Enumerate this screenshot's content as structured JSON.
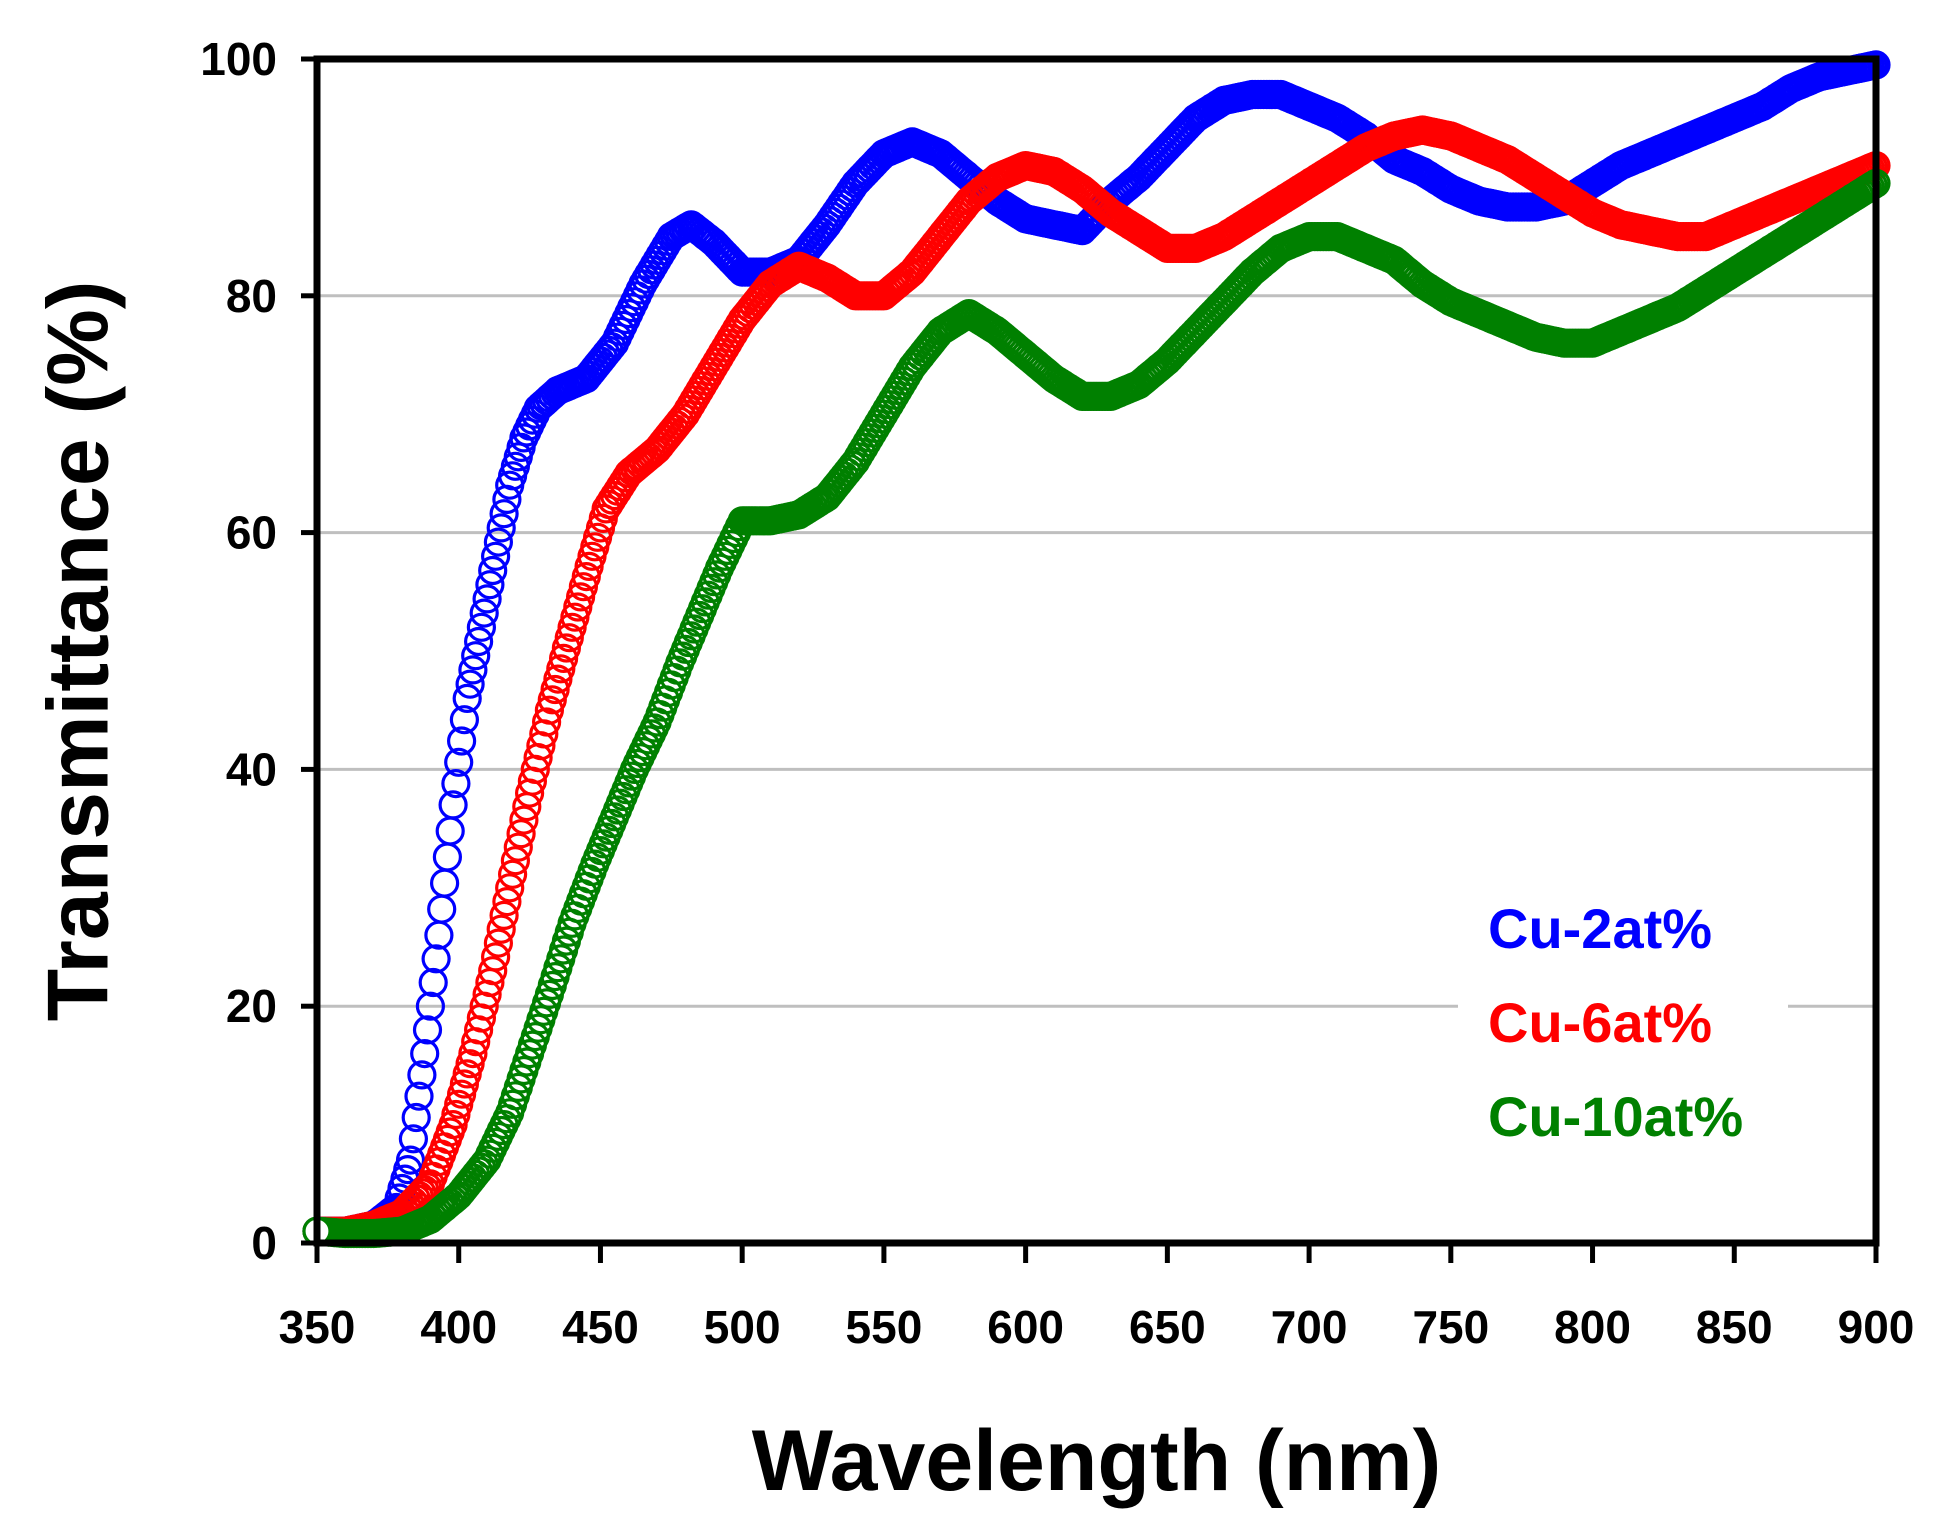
{
  "chart_data": {
    "type": "scatter",
    "title": "",
    "xlabel": "Wavelength (nm)",
    "ylabel": "Transmittance (%)",
    "xlim": [
      350,
      900
    ],
    "ylim": [
      0,
      100
    ],
    "x_ticks": [
      350,
      400,
      450,
      500,
      550,
      600,
      650,
      700,
      750,
      800,
      850,
      900
    ],
    "y_ticks": [
      0,
      20,
      40,
      60,
      80,
      100
    ],
    "grid": "horizontal",
    "marker": "open-circle",
    "legend_position": "lower-right",
    "series": [
      {
        "name": "Cu-2at%",
        "color": "#0000ff",
        "points": [
          [
            350,
            1
          ],
          [
            360,
            1
          ],
          [
            370,
            1.5
          ],
          [
            378,
            3
          ],
          [
            383,
            7
          ],
          [
            388,
            16
          ],
          [
            393,
            26
          ],
          [
            398,
            37
          ],
          [
            403,
            46
          ],
          [
            408,
            52
          ],
          [
            413,
            58
          ],
          [
            418,
            64
          ],
          [
            423,
            68
          ],
          [
            428,
            70.5
          ],
          [
            435,
            72
          ],
          [
            445,
            73
          ],
          [
            455,
            76
          ],
          [
            465,
            81
          ],
          [
            475,
            85
          ],
          [
            482,
            86
          ],
          [
            490,
            84.5
          ],
          [
            500,
            82
          ],
          [
            510,
            82
          ],
          [
            520,
            83
          ],
          [
            530,
            86
          ],
          [
            540,
            89.5
          ],
          [
            550,
            92
          ],
          [
            560,
            93
          ],
          [
            570,
            92
          ],
          [
            580,
            90
          ],
          [
            590,
            88
          ],
          [
            600,
            86.5
          ],
          [
            610,
            86
          ],
          [
            620,
            85.5
          ],
          [
            630,
            88
          ],
          [
            640,
            90
          ],
          [
            650,
            92.5
          ],
          [
            660,
            95
          ],
          [
            670,
            96.5
          ],
          [
            680,
            97
          ],
          [
            690,
            97
          ],
          [
            700,
            96
          ],
          [
            710,
            95
          ],
          [
            720,
            93.5
          ],
          [
            730,
            91.5
          ],
          [
            740,
            90.5
          ],
          [
            750,
            89
          ],
          [
            760,
            88
          ],
          [
            770,
            87.5
          ],
          [
            780,
            87.5
          ],
          [
            790,
            88
          ],
          [
            800,
            89.5
          ],
          [
            810,
            91
          ],
          [
            820,
            92
          ],
          [
            830,
            93
          ],
          [
            840,
            94
          ],
          [
            850,
            95
          ],
          [
            860,
            96
          ],
          [
            870,
            97.5
          ],
          [
            880,
            98.5
          ],
          [
            890,
            99
          ],
          [
            900,
            99.5
          ]
        ]
      },
      {
        "name": "Cu-6at%",
        "color": "#ff0000",
        "points": [
          [
            350,
            1
          ],
          [
            360,
            1
          ],
          [
            370,
            1.5
          ],
          [
            380,
            2.5
          ],
          [
            390,
            5
          ],
          [
            398,
            10
          ],
          [
            405,
            16
          ],
          [
            412,
            23
          ],
          [
            418,
            30
          ],
          [
            425,
            38
          ],
          [
            432,
            45
          ],
          [
            440,
            52
          ],
          [
            447,
            58
          ],
          [
            452,
            62
          ],
          [
            460,
            65
          ],
          [
            470,
            67
          ],
          [
            480,
            70
          ],
          [
            490,
            74
          ],
          [
            500,
            78
          ],
          [
            510,
            81
          ],
          [
            520,
            82.5
          ],
          [
            530,
            81.5
          ],
          [
            540,
            80
          ],
          [
            550,
            80
          ],
          [
            560,
            82
          ],
          [
            570,
            85
          ],
          [
            580,
            88
          ],
          [
            590,
            90
          ],
          [
            600,
            91
          ],
          [
            610,
            90.5
          ],
          [
            620,
            89
          ],
          [
            630,
            87
          ],
          [
            640,
            85.5
          ],
          [
            650,
            84
          ],
          [
            660,
            84
          ],
          [
            670,
            85
          ],
          [
            680,
            86.5
          ],
          [
            690,
            88
          ],
          [
            700,
            89.5
          ],
          [
            710,
            91
          ],
          [
            720,
            92.5
          ],
          [
            730,
            93.5
          ],
          [
            740,
            94
          ],
          [
            750,
            93.5
          ],
          [
            760,
            92.5
          ],
          [
            770,
            91.5
          ],
          [
            780,
            90
          ],
          [
            790,
            88.5
          ],
          [
            800,
            87
          ],
          [
            810,
            86
          ],
          [
            820,
            85.5
          ],
          [
            830,
            85
          ],
          [
            840,
            85
          ],
          [
            850,
            86
          ],
          [
            860,
            87
          ],
          [
            870,
            88
          ],
          [
            880,
            89
          ],
          [
            890,
            90
          ],
          [
            900,
            91
          ]
        ]
      },
      {
        "name": "Cu-10at%",
        "color": "#008000",
        "points": [
          [
            350,
            1
          ],
          [
            360,
            0.8
          ],
          [
            370,
            0.8
          ],
          [
            380,
            1
          ],
          [
            390,
            2
          ],
          [
            400,
            4
          ],
          [
            410,
            7
          ],
          [
            418,
            11
          ],
          [
            425,
            16
          ],
          [
            432,
            21
          ],
          [
            440,
            27
          ],
          [
            448,
            32
          ],
          [
            455,
            36
          ],
          [
            462,
            40
          ],
          [
            470,
            44
          ],
          [
            478,
            49
          ],
          [
            485,
            53
          ],
          [
            492,
            57
          ],
          [
            500,
            61
          ],
          [
            510,
            61
          ],
          [
            520,
            61.5
          ],
          [
            530,
            63
          ],
          [
            540,
            66
          ],
          [
            550,
            70
          ],
          [
            560,
            74
          ],
          [
            570,
            77
          ],
          [
            580,
            78.5
          ],
          [
            590,
            77
          ],
          [
            600,
            75
          ],
          [
            610,
            73
          ],
          [
            620,
            71.5
          ],
          [
            630,
            71.5
          ],
          [
            640,
            72.5
          ],
          [
            650,
            74.5
          ],
          [
            660,
            77
          ],
          [
            670,
            79.5
          ],
          [
            680,
            82
          ],
          [
            690,
            84
          ],
          [
            700,
            85
          ],
          [
            710,
            85
          ],
          [
            720,
            84
          ],
          [
            730,
            83
          ],
          [
            740,
            81
          ],
          [
            750,
            79.5
          ],
          [
            760,
            78.5
          ],
          [
            770,
            77.5
          ],
          [
            780,
            76.5
          ],
          [
            790,
            76
          ],
          [
            800,
            76
          ],
          [
            810,
            77
          ],
          [
            820,
            78
          ],
          [
            830,
            79
          ],
          [
            840,
            80.5
          ],
          [
            850,
            82
          ],
          [
            860,
            83.5
          ],
          [
            870,
            85
          ],
          [
            880,
            86.5
          ],
          [
            890,
            88
          ],
          [
            900,
            89.5
          ]
        ]
      }
    ]
  }
}
